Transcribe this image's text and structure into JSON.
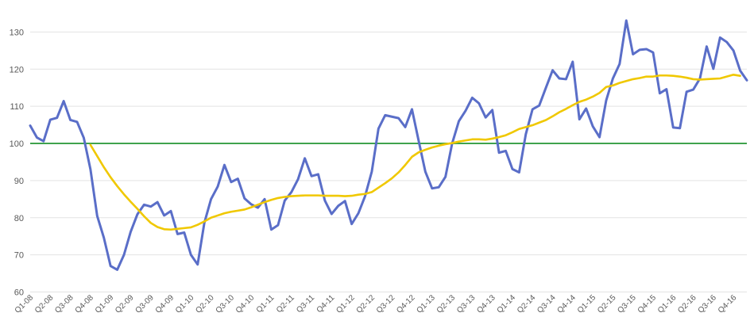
{
  "chart_data": {
    "type": "line",
    "title": "",
    "xlabel": "",
    "ylabel": "",
    "ylim": [
      60,
      130
    ],
    "yticks": [
      60,
      70,
      80,
      90,
      100,
      110,
      120,
      130
    ],
    "grid": "horizontal",
    "colors": {
      "series1": "#5a6ec8",
      "series2": "#f0c800",
      "reference": "#3fa34d",
      "grid": "#e3e3e3",
      "text": "#595959"
    },
    "reference_line": {
      "value": 100
    },
    "x_tick_labels": [
      "Q1-08",
      "Q2-08",
      "Q3-08",
      "Q4-08",
      "Q1-09",
      "Q2-09",
      "Q3-09",
      "Q4-09",
      "Q1-10",
      "Q2-10",
      "Q3-10",
      "Q4-10",
      "Q1-11",
      "Q2-11",
      "Q3-11",
      "Q4-11",
      "Q1-12",
      "Q2-12",
      "Q3-12",
      "Q4-12",
      "Q1-13",
      "Q2-13",
      "Q3-13",
      "Q4-13",
      "Q1-14",
      "Q2-14",
      "Q3-14",
      "Q4-14",
      "Q1-15",
      "Q2-15",
      "Q3-15",
      "Q4-15",
      "Q1-16",
      "Q2-16",
      "Q3-16",
      "Q4-16"
    ],
    "n_points": 108,
    "series": [
      {
        "values": [
          104.8,
          101.6,
          100.6,
          106.4,
          106.9,
          111.4,
          106.3,
          105.8,
          101.5,
          93.0,
          80.5,
          74.6,
          67.0,
          66.0,
          70.0,
          76.2,
          80.9,
          83.5,
          83.0,
          84.2,
          80.6,
          81.8,
          75.6,
          76.0,
          70.0,
          67.4,
          78.6,
          85.0,
          88.4,
          94.2,
          89.6,
          90.5,
          85.2,
          83.6,
          82.7,
          85.0,
          76.8,
          78.0,
          84.6,
          86.9,
          90.4,
          96.0,
          91.2,
          91.7,
          84.6,
          81.0,
          83.2,
          84.5,
          78.3,
          81.2,
          85.8,
          92.4,
          104.0,
          107.6,
          107.2,
          106.8,
          104.4,
          109.2,
          100.7,
          92.4,
          87.9,
          88.2,
          91.0,
          100.0,
          106.0,
          108.8,
          112.3,
          110.8,
          107.0,
          109.0,
          97.5,
          98.0,
          93.1,
          92.2,
          102.5,
          109.2,
          110.2,
          115.0,
          119.7,
          117.5,
          117.3,
          122.0,
          106.5,
          109.4,
          104.6,
          101.7,
          111.6,
          117.5,
          121.4,
          133.1,
          124.0,
          125.2,
          125.4,
          124.5,
          113.5,
          114.6,
          104.3,
          104.1,
          113.9,
          114.5,
          117.5,
          126.1,
          120.1,
          128.5,
          127.3,
          125.0,
          119.6,
          117.0
        ]
      },
      {
        "start_index": 9,
        "values": [
          99.6,
          96.6,
          93.6,
          90.9,
          88.5,
          86.3,
          84.3,
          82.4,
          80.4,
          78.6,
          77.5,
          76.9,
          76.8,
          77.0,
          77.2,
          77.4,
          78.1,
          79.0,
          80.0,
          80.6,
          81.2,
          81.6,
          81.9,
          82.2,
          82.8,
          83.5,
          84.2,
          84.8,
          85.3,
          85.6,
          85.8,
          85.9,
          86.0,
          86.0,
          86.0,
          85.9,
          85.9,
          85.9,
          85.8,
          85.9,
          86.2,
          86.4,
          86.9,
          88.1,
          89.3,
          90.6,
          92.2,
          94.2,
          96.4,
          97.6,
          98.3,
          98.9,
          99.4,
          99.8,
          100.1,
          100.5,
          100.8,
          101.1,
          101.1,
          101.0,
          101.3,
          101.7,
          102.2,
          103.0,
          103.9,
          104.4,
          104.9,
          105.6,
          106.3,
          107.3,
          108.4,
          109.3,
          110.3,
          111.2,
          111.8,
          112.6,
          113.6,
          115.2,
          115.6,
          116.3,
          116.8,
          117.3,
          117.6,
          118.0,
          118.0,
          118.3,
          118.3,
          118.2,
          118.0,
          117.7,
          117.3,
          117.2,
          117.3,
          117.4,
          117.5,
          118.0,
          118.5,
          118.2
        ]
      }
    ]
  }
}
